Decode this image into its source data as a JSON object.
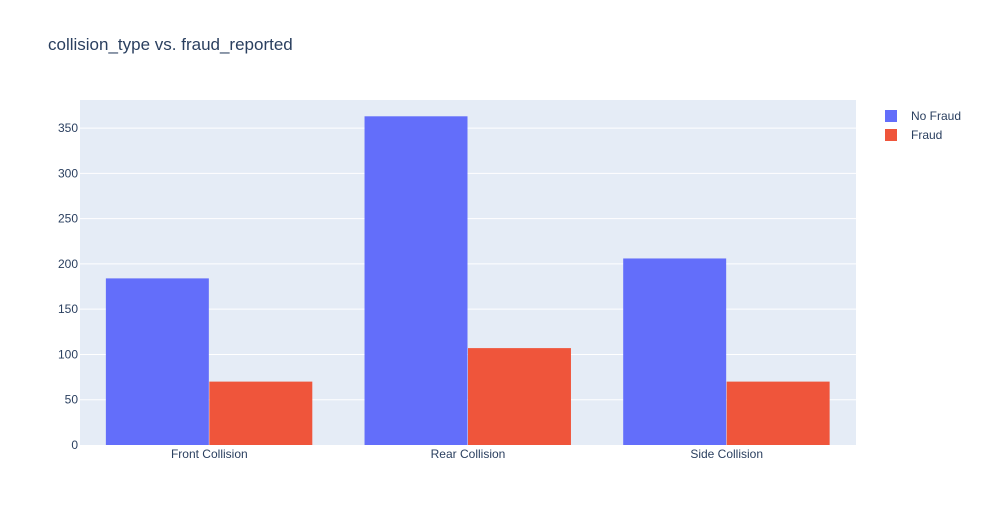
{
  "chart_data": {
    "type": "bar",
    "title": "collision_type vs. fraud_reported",
    "xlabel": "",
    "ylabel": "",
    "categories": [
      "Front Collision",
      "Rear Collision",
      "Side Collision"
    ],
    "series": [
      {
        "name": "No Fraud",
        "color": "#636efa",
        "values": [
          184,
          363,
          206
        ]
      },
      {
        "name": "Fraud",
        "color": "#ef553b",
        "values": [
          70,
          107,
          70
        ]
      }
    ],
    "ylim": [
      0,
      381
    ],
    "yticks": [
      0,
      50,
      100,
      150,
      200,
      250,
      300,
      350
    ],
    "grid": true,
    "legend_position": "top-right",
    "plot_background": "#e5ecf6",
    "gridline_color": "#ffffff"
  }
}
